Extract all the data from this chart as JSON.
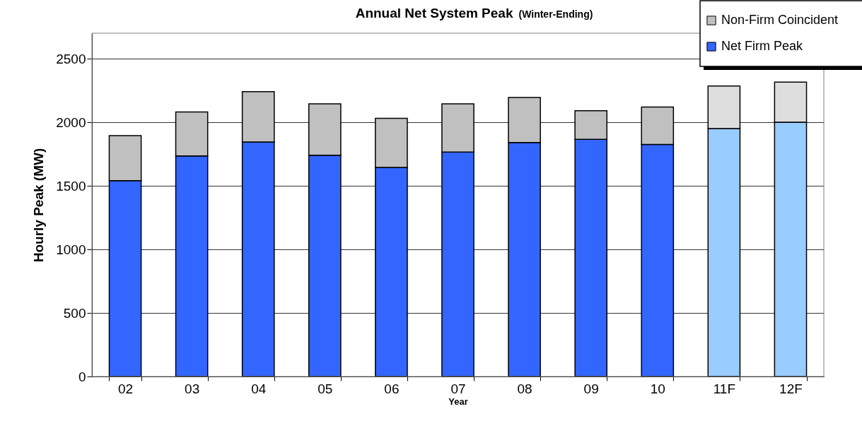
{
  "chart_data": {
    "type": "bar",
    "title": "Annual Net System Peak",
    "subtitle": "(Winter-Ending)",
    "xlabel": "Year",
    "ylabel": "Hourly Peak  (MW)",
    "categories": [
      "02",
      "03",
      "04",
      "05",
      "06",
      "07",
      "08",
      "09",
      "10",
      "11F",
      "12F"
    ],
    "stacked": true,
    "series": [
      {
        "name": "Net Firm Peak",
        "color": "#3366ff",
        "colors": [
          "#3366ff",
          "#3366ff",
          "#3366ff",
          "#3366ff",
          "#3366ff",
          "#3366ff",
          "#3366ff",
          "#3366ff",
          "#3366ff",
          "#99ccff",
          "#99ccff"
        ],
        "values": [
          1540,
          1735,
          1845,
          1740,
          1645,
          1765,
          1840,
          1865,
          1825,
          1950,
          2000
        ]
      },
      {
        "name": "Non-Firm Coincident",
        "color": "#c0c0c0",
        "colors": [
          "#c0c0c0",
          "#c0c0c0",
          "#c0c0c0",
          "#c0c0c0",
          "#c0c0c0",
          "#c0c0c0",
          "#c0c0c0",
          "#c0c0c0",
          "#c0c0c0",
          "#dddddd",
          "#dddddd"
        ],
        "values": [
          355,
          345,
          395,
          405,
          385,
          380,
          355,
          225,
          295,
          335,
          315
        ]
      }
    ],
    "ylim": [
      0,
      2700
    ],
    "yticks": [
      0,
      500,
      1000,
      1500,
      2000,
      2500
    ],
    "grid": "y",
    "legend": "top right"
  }
}
